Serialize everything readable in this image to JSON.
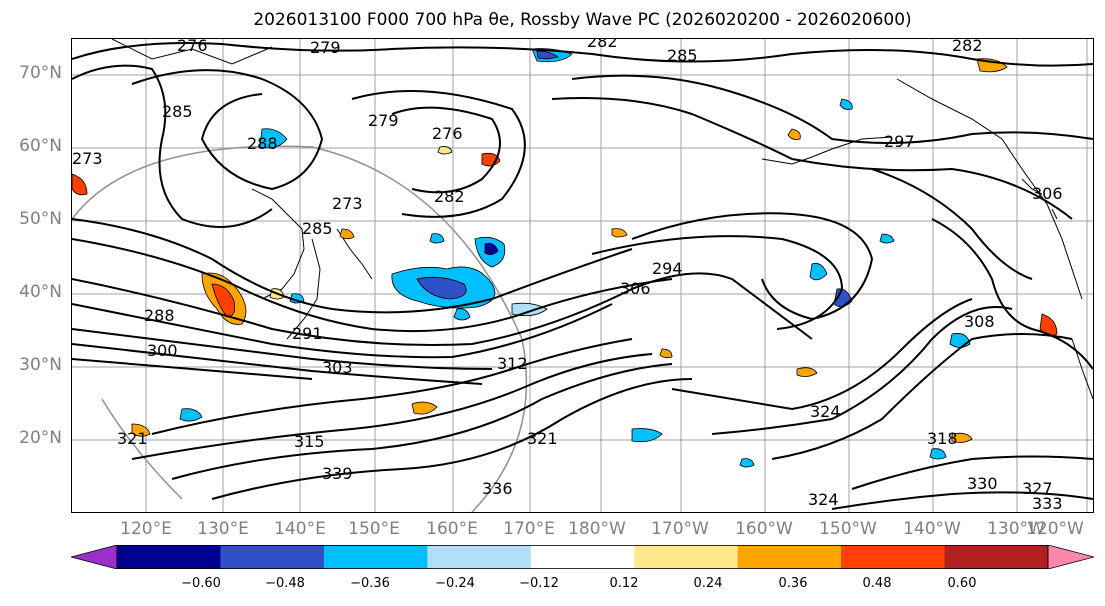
{
  "title": "2026013100 F000 700 hPa θe, Rossby Wave PC (2026020200 - 2026020600)",
  "map": {
    "lat_labels": [
      "70°N",
      "60°N",
      "50°N",
      "40°N",
      "30°N",
      "20°N"
    ],
    "lon_labels": [
      "120°E",
      "130°E",
      "140°E",
      "150°E",
      "160°E",
      "170°E",
      "180°W",
      "170°W",
      "160°W",
      "150°W",
      "140°W",
      "130°W",
      "120°W"
    ],
    "contour_labels": [
      "276",
      "279",
      "282",
      "285",
      "282",
      "285",
      "279",
      "276",
      "288",
      "273",
      "282",
      "273",
      "285",
      "297",
      "306",
      "294",
      "306",
      "308",
      "288",
      "291",
      "300",
      "303",
      "315",
      "321",
      "324",
      "324",
      "318",
      "327",
      "330",
      "333",
      "336",
      "339",
      "312",
      "321"
    ],
    "grid": true
  },
  "colorbar": {
    "colors": [
      "#9b30c8",
      "#000090",
      "#3050c8",
      "#00bfff",
      "#b0e0f8",
      "#ffffff",
      "#ffe88a",
      "#ffa500",
      "#ff4000",
      "#b02020",
      "#ff88aa"
    ],
    "tick_labels": [
      "−0.60",
      "−0.48",
      "−0.36",
      "−0.24",
      "−0.12",
      "0.12",
      "0.24",
      "0.36",
      "0.48",
      "0.60"
    ],
    "extend": "both"
  }
}
